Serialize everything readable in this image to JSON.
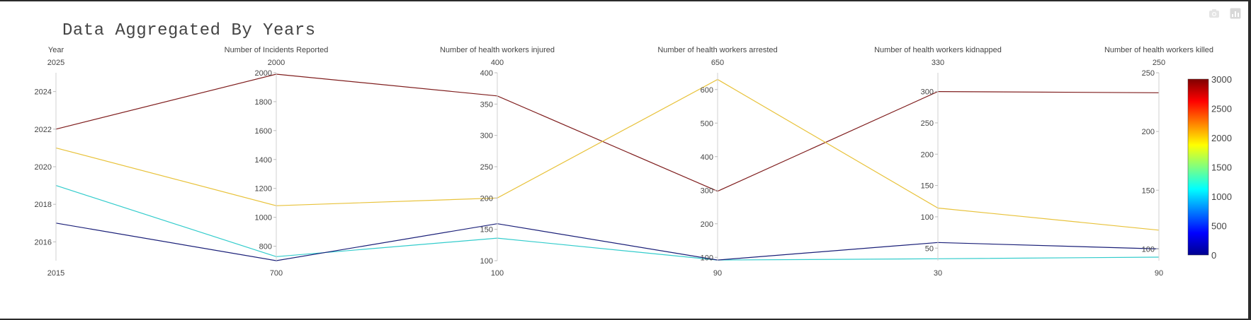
{
  "title": "Data Aggregated By Years",
  "modebar": {
    "icons": [
      "camera-icon",
      "bar-chart-icon"
    ]
  },
  "chart_data": {
    "type": "parallel_coordinates",
    "title": "Data Aggregated By Years",
    "dimensions": [
      {
        "label": "Year",
        "range": [
          2015,
          2025
        ],
        "ticks": [
          2016,
          2018,
          2020,
          2022,
          2024
        ],
        "range_labels": [
          "2015",
          "2025"
        ]
      },
      {
        "label": "Number of Incidents Reported",
        "range": [
          700,
          2000
        ],
        "ticks": [
          800,
          1000,
          1200,
          1400,
          1600,
          1800,
          2000
        ],
        "range_labels": [
          "700",
          "2000"
        ]
      },
      {
        "label": "Number of health workers injured",
        "range": [
          100,
          400
        ],
        "ticks": [
          100,
          150,
          200,
          250,
          300,
          350,
          400
        ],
        "range_labels": [
          "100",
          "400"
        ]
      },
      {
        "label": "Number of health workers arrested",
        "range": [
          90,
          650
        ],
        "ticks": [
          100,
          200,
          300,
          400,
          500,
          600
        ],
        "range_labels": [
          "90",
          "650"
        ]
      },
      {
        "label": "Number of health workers kidnapped",
        "range": [
          30,
          330
        ],
        "ticks": [
          50,
          100,
          150,
          200,
          250,
          300
        ],
        "range_labels": [
          "30",
          "330"
        ]
      },
      {
        "label": "Number of health workers killed",
        "range": [
          90,
          250
        ],
        "ticks": [
          100,
          150,
          200,
          250
        ],
        "range_labels": [
          "90",
          "250"
        ]
      }
    ],
    "records": [
      {
        "color_value": 3000,
        "color": "#7f1d1d",
        "values": [
          2022,
          1990,
          363,
          297,
          300,
          233
        ]
      },
      {
        "color_value": 2000,
        "color": "#e8c23a",
        "values": [
          2021,
          1080,
          200,
          630,
          114,
          116
        ]
      },
      {
        "color_value": 1100,
        "color": "#33cccc",
        "values": [
          2019,
          728,
          136,
          92,
          33,
          93
        ]
      },
      {
        "color_value": 100,
        "color": "#1a1f78",
        "values": [
          2017,
          700,
          159,
          92,
          59,
          100
        ]
      }
    ],
    "colorscale": {
      "name": "Jet",
      "min": 0,
      "max": 3000,
      "ticks": [
        0,
        500,
        1000,
        1500,
        2000,
        2500,
        3000
      ]
    }
  }
}
